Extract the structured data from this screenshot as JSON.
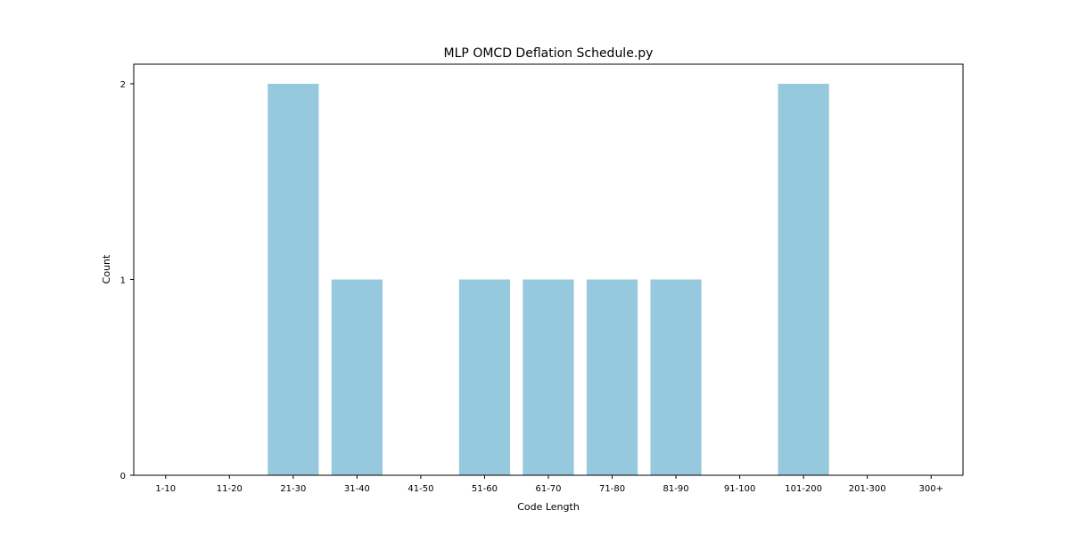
{
  "chart_data": {
    "type": "bar",
    "title": "MLP OMCD Deflation Schedule.py",
    "xlabel": "Code Length",
    "ylabel": "Count",
    "categories": [
      "1-10",
      "11-20",
      "21-30",
      "31-40",
      "41-50",
      "51-60",
      "61-70",
      "71-80",
      "81-90",
      "91-100",
      "101-200",
      "201-300",
      "300+"
    ],
    "values": [
      0,
      0,
      2,
      1,
      0,
      1,
      1,
      1,
      1,
      0,
      2,
      0,
      0
    ],
    "yticks": [
      0,
      1,
      2
    ],
    "ylim": [
      0,
      2.1
    ],
    "grid": false,
    "bar_color": "#96c9dd"
  }
}
